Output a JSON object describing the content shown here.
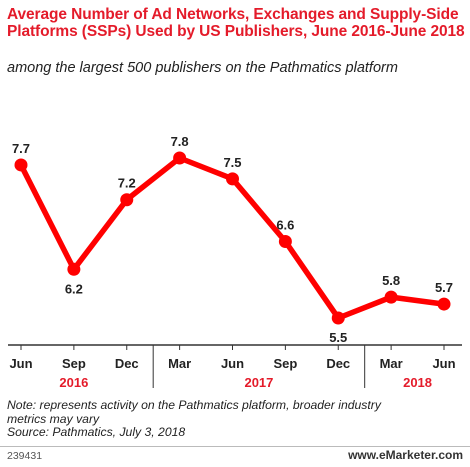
{
  "title": "Average Number of Ad Networks, Exchanges and Supply-Side Platforms (SSPs) Used by US Publishers, June 2016-June 2018",
  "subtitle": "among the largest 500 publishers on the Pathmatics platform",
  "note_line1": "Note: represents activity on the Pathmatics platform, broader industry",
  "note_line2": "metrics may vary",
  "source": "Source: Pathmatics, July 3, 2018",
  "footer": {
    "id": "239431",
    "brand": "www.eMarketer.com"
  },
  "colors": {
    "accent": "#e41b2a",
    "line": "#ff0000",
    "axis": "#333333"
  },
  "chart_data": {
    "type": "line",
    "title": "Average Number of Ad Networks, Exchanges and Supply-Side Platforms (SSPs) Used by US Publishers, June 2016-June 2018",
    "subtitle": "among the largest 500 publishers on the Pathmatics platform",
    "categories": [
      "Jun",
      "Sep",
      "Dec",
      "Mar",
      "Jun",
      "Sep",
      "Dec",
      "Mar",
      "Jun"
    ],
    "year_groups": [
      {
        "label": "2016",
        "from": 0,
        "to": 2
      },
      {
        "label": "2017",
        "from": 3,
        "to": 6
      },
      {
        "label": "2018",
        "from": 7,
        "to": 8
      }
    ],
    "series": [
      {
        "values": [
          7.7,
          6.2,
          7.2,
          7.8,
          7.5,
          6.6,
          5.5,
          5.8,
          5.7
        ]
      }
    ],
    "data_labels": [
      "7.7",
      "6.2",
      "7.2",
      "7.8",
      "7.5",
      "6.6",
      "5.5",
      "5.8",
      "5.7"
    ],
    "label_position": [
      "above",
      "below",
      "above",
      "above",
      "above",
      "above",
      "below",
      "above",
      "above"
    ],
    "xlabel": "",
    "ylabel": "",
    "ylim": [
      5.5,
      7.8
    ],
    "grid": false,
    "legend": "none"
  }
}
